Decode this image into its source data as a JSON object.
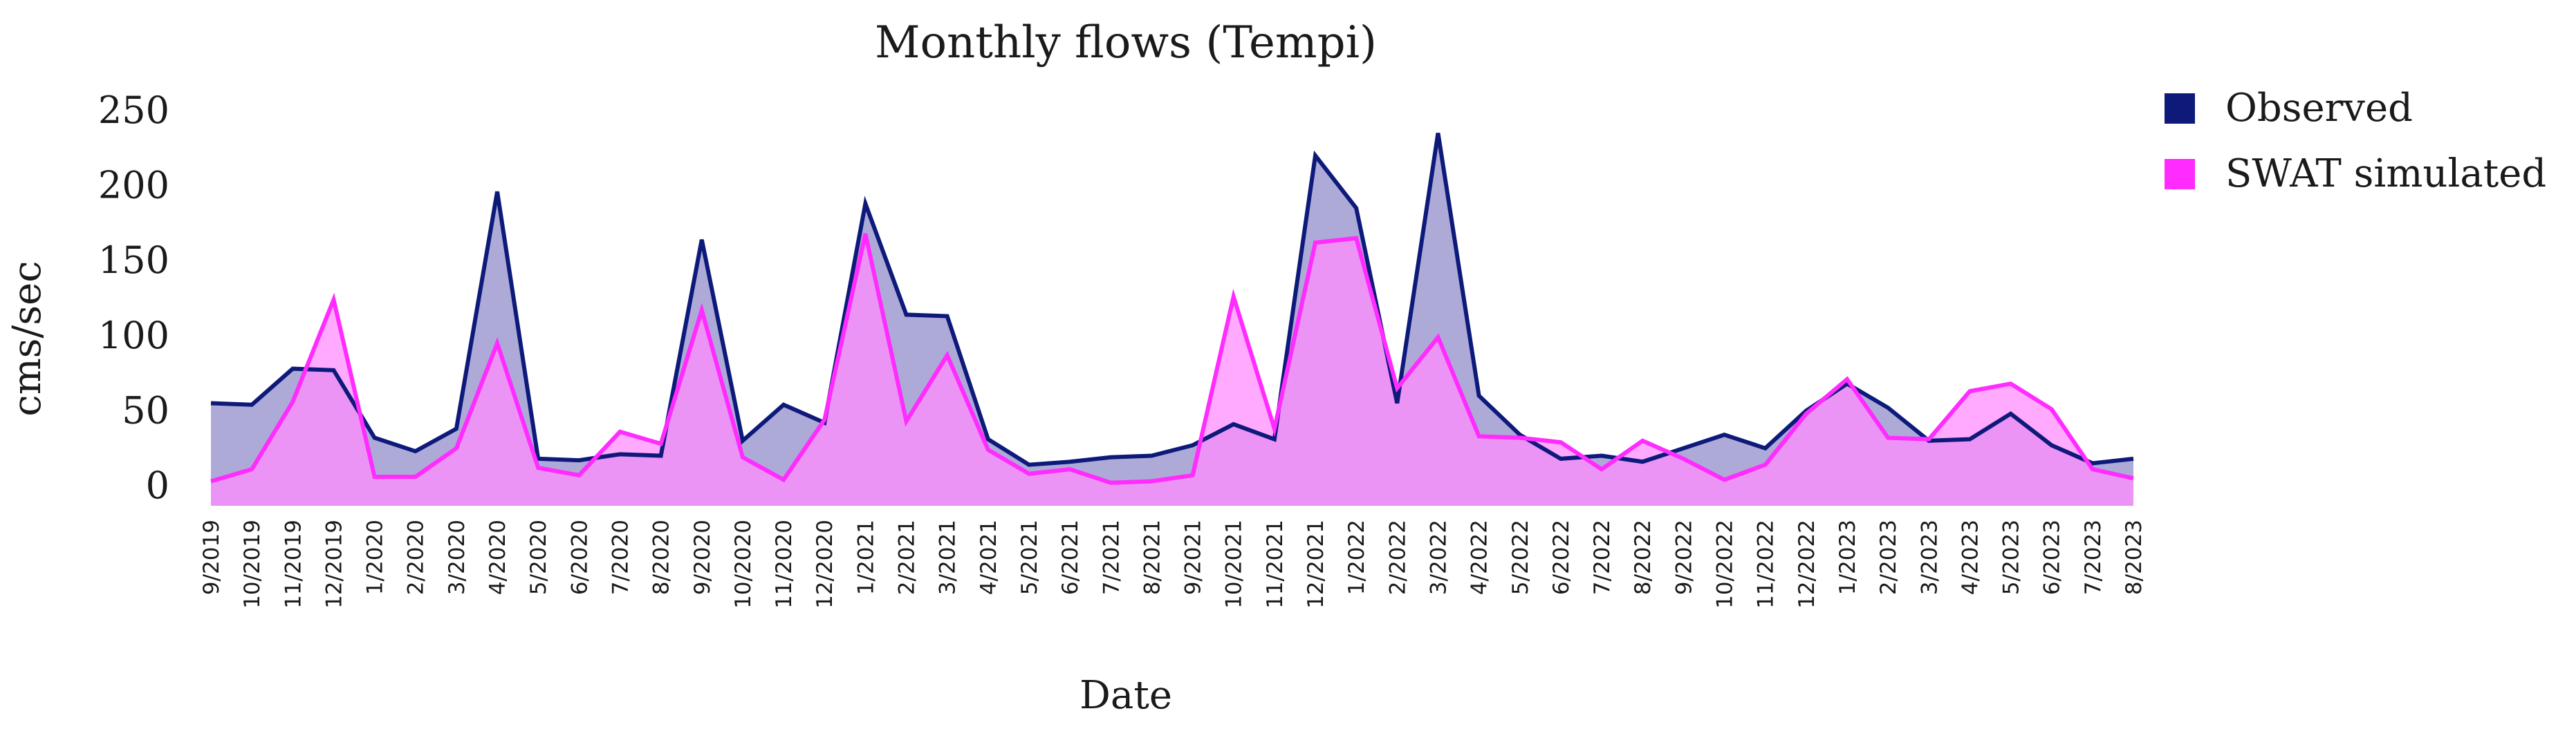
{
  "chart_data": {
    "type": "area",
    "title": "Monthly flows (Tempi)",
    "xlabel": "Date",
    "ylabel": "cms/sec",
    "ylim": [
      0,
      250
    ],
    "yticks": [
      0,
      50,
      100,
      150,
      200,
      250
    ],
    "categories": [
      "9/2019",
      "10/2019",
      "11/2019",
      "12/2019",
      "1/2020",
      "2/2020",
      "3/2020",
      "4/2020",
      "5/2020",
      "6/2020",
      "7/2020",
      "8/2020",
      "9/2020",
      "10/2020",
      "11/2020",
      "12/2020",
      "1/2021",
      "2/2021",
      "3/2021",
      "4/2021",
      "5/2021",
      "6/2021",
      "7/2021",
      "8/2021",
      "9/2021",
      "10/2021",
      "11/2021",
      "12/2021",
      "1/2022",
      "2/2022",
      "3/2022",
      "4/2022",
      "5/2022",
      "6/2022",
      "7/2022",
      "8/2022",
      "9/2022",
      "10/2022",
      "11/2022",
      "12/2022",
      "1/2023",
      "2/2023",
      "3/2023",
      "4/2023",
      "5/2023",
      "6/2023",
      "7/2023",
      "8/2023"
    ],
    "series": [
      {
        "name": "Observed",
        "line_color": "#0d1a7a",
        "fill_color": "#aeaad8",
        "values": [
          55,
          54,
          78,
          77,
          32,
          23,
          38,
          196,
          18,
          17,
          21,
          20,
          164,
          30,
          54,
          42,
          188,
          114,
          113,
          31,
          14,
          16,
          19,
          20,
          27,
          41,
          31,
          220,
          185,
          55,
          235,
          60,
          34,
          18,
          20,
          16,
          25,
          34,
          25,
          50,
          68,
          52,
          30,
          31,
          48,
          27,
          15,
          18
        ]
      },
      {
        "name": "SWAT simulated",
        "line_color": "#ff2bff",
        "fill_color": "#ff8cff",
        "values": [
          3,
          11,
          56,
          124,
          6,
          6,
          25,
          95,
          12,
          7,
          36,
          28,
          117,
          19,
          4,
          44,
          168,
          43,
          87,
          24,
          8,
          11,
          2,
          3,
          7,
          126,
          38,
          162,
          165,
          65,
          99,
          33,
          32,
          29,
          11,
          30,
          18,
          4,
          14,
          48,
          71,
          32,
          31,
          63,
          68,
          51,
          11,
          5
        ]
      }
    ]
  }
}
